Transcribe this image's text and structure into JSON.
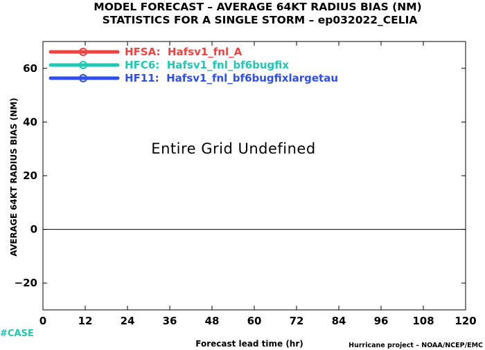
{
  "chart_data": {
    "type": "line",
    "title": "MODEL FORECAST – AVERAGE 64KT RADIUS BIAS (NM)",
    "subtitle": "STATISTICS FOR A SINGLE STORM – ep032022_CELIA",
    "xlabel": "Forecast lead time (hr)",
    "ylabel": "AVERAGE 64KT RADIUS BIAS (NM)",
    "xlim": [
      0,
      120
    ],
    "ylim": [
      -30,
      70
    ],
    "xticks": [
      0,
      12,
      24,
      36,
      48,
      60,
      72,
      84,
      96,
      108,
      120
    ],
    "yticks": [
      -20,
      0,
      20,
      40,
      60
    ],
    "ytick_labels": [
      "−20",
      "0",
      "20",
      "40",
      "60"
    ],
    "zero_line": 0,
    "grid": false,
    "legend_position": "top-left",
    "series": [
      {
        "name": "HFSA:  Hafsv1_fnl_A",
        "color": "#f2413f",
        "x": [],
        "y": []
      },
      {
        "name": "HFC6:  Hafsv1_fnl_bf6bugfix",
        "color": "#1ec8b4",
        "x": [],
        "y": []
      },
      {
        "name": "HF11:  Hafsv1_fnl_bf6bugfixlargetau",
        "color": "#2e4ef0",
        "x": [],
        "y": []
      }
    ],
    "annotation": "Entire Grid Undefined"
  },
  "case_tag": {
    "text": "#CASE",
    "color": "#1ec8b4"
  },
  "footer": "Hurricane project – NOAA/NCEP/EMC"
}
